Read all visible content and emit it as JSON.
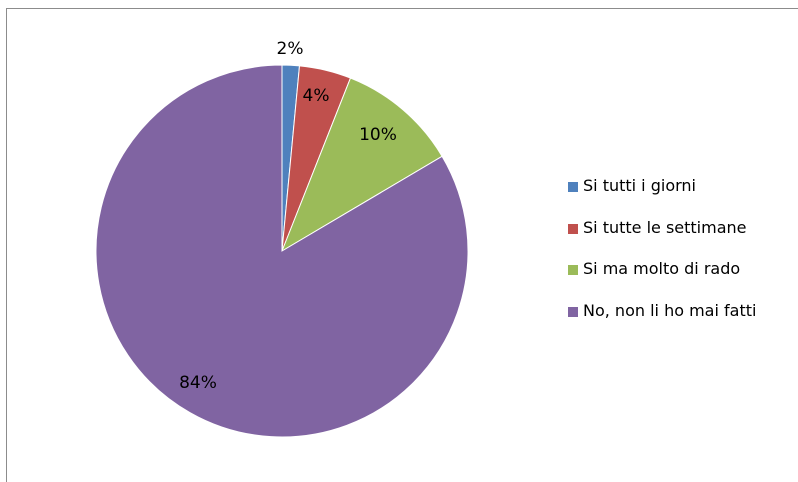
{
  "chart_data": {
    "type": "pie",
    "title": "",
    "categories": [
      "Si tutti i giorni",
      "Si tutte le settimane",
      "Si ma molto di rado",
      "No, non li ho mai fatti"
    ],
    "values": [
      1.5,
      4.5,
      10.5,
      83.5
    ],
    "data_labels": [
      "2%",
      "4%",
      "10%",
      "84%"
    ],
    "colors": [
      "#4f81bd",
      "#c0504d",
      "#9bbb59",
      "#8064a2"
    ],
    "legend_position": "right",
    "legend": [
      {
        "label": "Si tutti i giorni",
        "color": "#4f81bd"
      },
      {
        "label": "Si tutte le settimane",
        "color": "#c0504d"
      },
      {
        "label": "Si ma molto di rado",
        "color": "#9bbb59"
      },
      {
        "label": "No, non li ho mai fatti",
        "color": "#8064a2"
      }
    ]
  }
}
